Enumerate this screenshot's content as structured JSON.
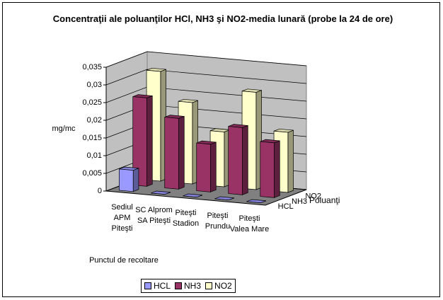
{
  "chart_data": {
    "type": "bar3d",
    "title": "Concentraţii ale poluanţilor HCl, NH3 şi NO2-media lunară (probe la 24 de ore)",
    "y_axis_title": "mg/mc",
    "x_axis_title": "Punctul de recoltare",
    "depth_axis_title": "Poluanţi",
    "categories": [
      "Sediul APM Piteşti",
      "SC Alprom SA Piteşti",
      "Piteşti Stadion",
      "Piteşti Prundu",
      "Piteşti Valea Mare"
    ],
    "series": [
      {
        "name": "HCL",
        "color": "#9999ff",
        "values": [
          0.006,
          0,
          0,
          0,
          0
        ]
      },
      {
        "name": "NH3",
        "color": "#993366",
        "values": [
          0.025,
          0.02,
          0.0135,
          0.019,
          0.0155
        ]
      },
      {
        "name": "NO2",
        "color": "#ffffcc",
        "values": [
          0.031,
          0.023,
          0.0155,
          0.0275,
          0.017
        ]
      }
    ],
    "ylim": [
      0,
      0.035
    ],
    "yticks": [
      0,
      {
        "value": 0.005,
        "label": "0,005"
      },
      {
        "value": 0.01,
        "label": "0,01"
      },
      {
        "value": 0.015,
        "label": "0,015"
      },
      {
        "value": 0.02,
        "label": "0,02"
      },
      {
        "value": 0.025,
        "label": "0,025"
      },
      {
        "value": 0.03,
        "label": "0,03"
      },
      {
        "value": 0.035,
        "label": "0,035"
      }
    ],
    "grid": true
  }
}
